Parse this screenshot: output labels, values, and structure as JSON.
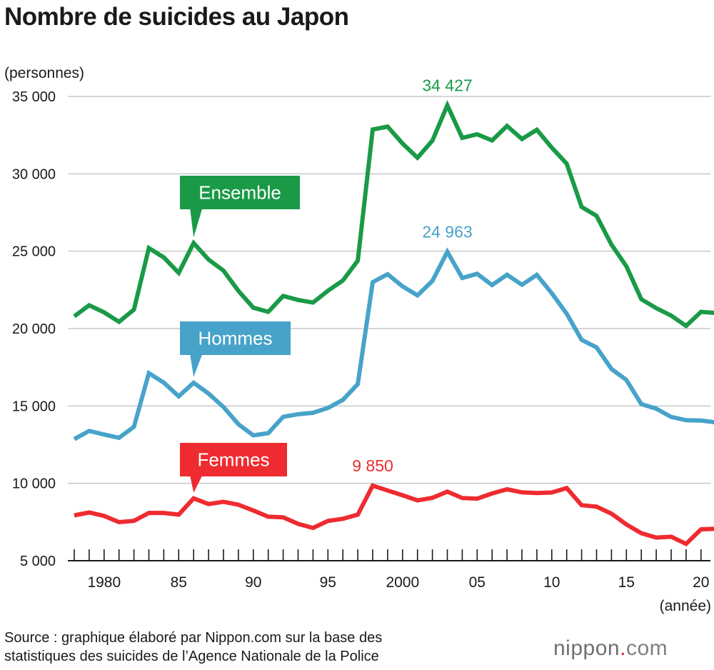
{
  "title": "Nombre de suicides au Japon",
  "source_lines": [
    "Source : graphique élaboré par Nippon.com sur la base des",
    "statistiques des suicides de l’Agence Nationale de la Police"
  ],
  "logo": {
    "main": "nippon",
    "sep": ".",
    "suffix": "com"
  },
  "colors": {
    "ensemble": "#1a9a47",
    "hommes": "#47a3c9",
    "femmes": "#ee2b30",
    "grid": "#c8c8c8",
    "axis": "#1a1a1a"
  },
  "chart_data": {
    "type": "line",
    "title": "Nombre de suicides au Japon",
    "ylabel": "(personnes)",
    "xlabel": "(année)",
    "ylim": [
      5000,
      35000
    ],
    "xlim": [
      1978,
      2021
    ],
    "y_ticks": [
      5000,
      10000,
      15000,
      20000,
      25000,
      30000,
      35000
    ],
    "y_tick_labels": [
      "5 000",
      "10 000",
      "15 000",
      "20 000",
      "25 000",
      "30 000",
      "35 000"
    ],
    "x_ticks": [
      1980,
      1985,
      1990,
      1995,
      2000,
      2005,
      2010,
      2015,
      2020
    ],
    "x_tick_labels": [
      "1980",
      "85",
      "90",
      "95",
      "2000",
      "05",
      "10",
      "15",
      "20"
    ],
    "grid": true,
    "x": [
      1978,
      1979,
      1980,
      1981,
      1982,
      1983,
      1984,
      1985,
      1986,
      1987,
      1988,
      1989,
      1990,
      1991,
      1992,
      1993,
      1994,
      1995,
      1996,
      1997,
      1998,
      1999,
      2000,
      2001,
      2002,
      2003,
      2004,
      2005,
      2006,
      2007,
      2008,
      2009,
      2010,
      2011,
      2012,
      2013,
      2014,
      2015,
      2016,
      2017,
      2018,
      2019,
      2020,
      2021
    ],
    "series": [
      {
        "key": "ensemble",
        "name": "Ensemble",
        "values": [
          20788,
          21503,
          21048,
          20434,
          21228,
          25202,
          24596,
          23599,
          25524,
          24460,
          23742,
          22436,
          21346,
          21084,
          22104,
          21851,
          21679,
          22445,
          23104,
          24391,
          32863,
          33048,
          31957,
          31042,
          32143,
          34427,
          32325,
          32552,
          32155,
          33093,
          32249,
          32845,
          31690,
          30651,
          27858,
          27283,
          25427,
          24025,
          21897,
          21321,
          20840,
          20169,
          21081,
          21007
        ]
      },
      {
        "key": "hommes",
        "name": "Hommes",
        "values": [
          12859,
          13386,
          13155,
          12942,
          13654,
          17116,
          16508,
          15624,
          16497,
          15802,
          14934,
          13818,
          13102,
          13242,
          14296,
          14468,
          14560,
          14874,
          15393,
          16416,
          22999,
          23512,
          22727,
          22144,
          23080,
          24963,
          23272,
          23540,
          22813,
          23478,
          22831,
          23472,
          22283,
          20955,
          19273,
          18787,
          17386,
          16681,
          15121,
          14826,
          14290,
          14078,
          14055,
          13939
        ]
      },
      {
        "key": "femmes",
        "name": "Femmes",
        "values": [
          7929,
          8117,
          7893,
          7492,
          7574,
          8086,
          8088,
          7975,
          9027,
          8658,
          8808,
          8618,
          8244,
          7842,
          7808,
          7383,
          7119,
          7571,
          7711,
          7975,
          9850,
          9536,
          9230,
          8898,
          9063,
          9464,
          9053,
          9012,
          9342,
          9615,
          9418,
          9373,
          9407,
          9696,
          8585,
          8496,
          8041,
          7344,
          6776,
          6495,
          6550,
          6091,
          7026,
          7068
        ]
      }
    ],
    "series_labels": [
      {
        "key": "ensemble",
        "text": "Ensemble",
        "pointer_year": 1986
      },
      {
        "key": "hommes",
        "text": "Hommes",
        "pointer_year": 1986
      },
      {
        "key": "femmes",
        "text": "Femmes",
        "pointer_year": 1986
      }
    ],
    "annotations": [
      {
        "key": "ensemble",
        "year": 2003,
        "value": 34427,
        "text": "34 427"
      },
      {
        "key": "hommes",
        "year": 2003,
        "value": 24963,
        "text": "24 963"
      },
      {
        "key": "femmes",
        "year": 1998,
        "value": 9850,
        "text": "9 850"
      }
    ]
  }
}
